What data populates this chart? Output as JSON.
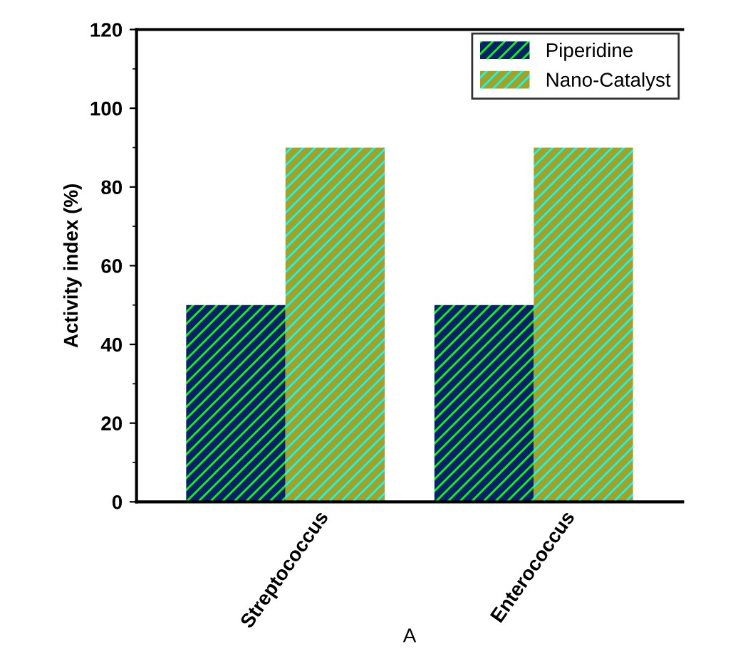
{
  "chart_data": {
    "type": "bar",
    "xlabel": "A",
    "ylabel": "Activity index (%)",
    "categories": [
      "Streptococcus",
      "Enterococcus"
    ],
    "series": [
      {
        "name": "Piperidine",
        "color": "#0c1e6e",
        "values": [
          50,
          50
        ]
      },
      {
        "name": "Nano-Catalyst",
        "color": "#a8a020",
        "values": [
          90,
          90
        ]
      }
    ],
    "ylim": [
      0,
      120
    ],
    "yticks": [
      0,
      20,
      40,
      60,
      80,
      100,
      120
    ],
    "legend": "top right",
    "grid": false
  }
}
